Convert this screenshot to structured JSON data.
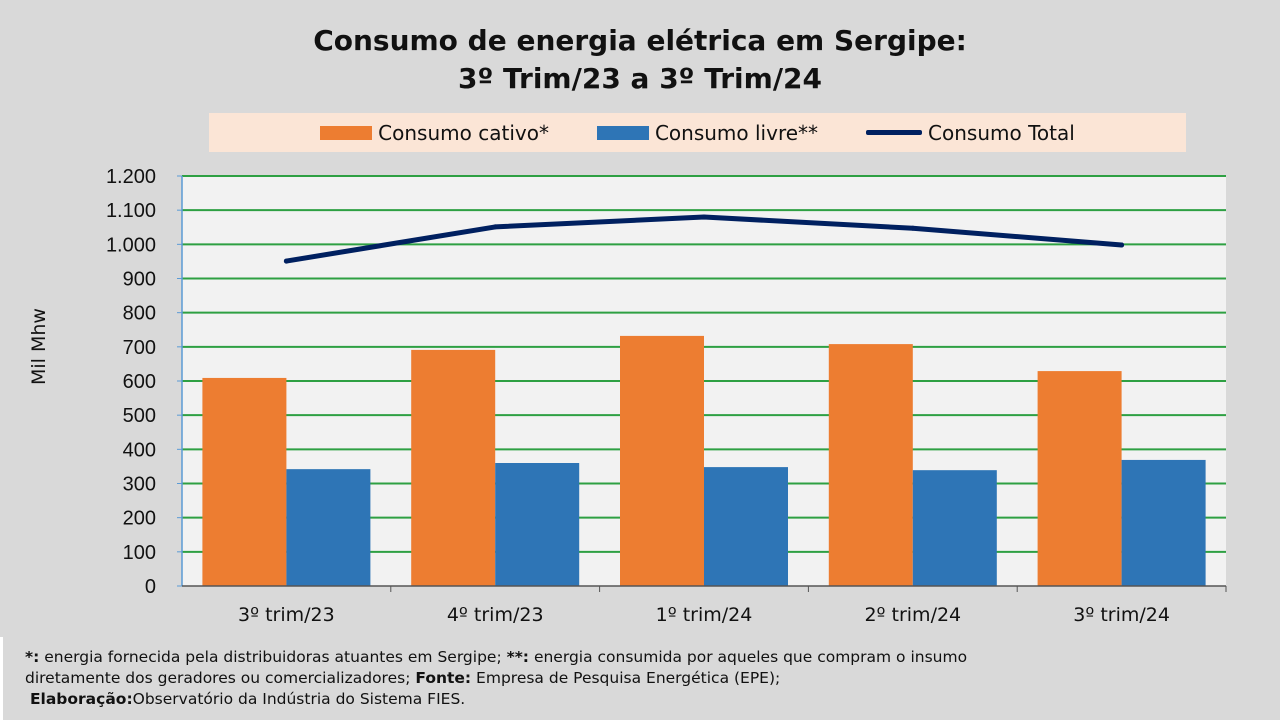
{
  "chart_data": {
    "type": "bar",
    "title_line1": "Consumo de energia elétrica em Sergipe:",
    "title_line2": "3º Trim/23 a 3º Trim/24",
    "ylabel": "Mil Mhw",
    "categories": [
      "3º trim/23",
      "4º trim/23",
      "1º trim/24",
      "2º trim/24",
      "3º trim/24"
    ],
    "ylim": [
      0,
      1200
    ],
    "yticks": [
      0,
      100,
      200,
      300,
      400,
      500,
      600,
      700,
      800,
      900,
      1000,
      1100,
      1200
    ],
    "ytick_labels": [
      "0",
      "100",
      "200",
      "300",
      "400",
      "500",
      "600",
      "700",
      "800",
      "900",
      "1.000",
      "1.100",
      "1.200"
    ],
    "grid": true,
    "legend_position": "top",
    "series": [
      {
        "name": "Consumo cativo*",
        "type": "bar",
        "color": "#ed7d31",
        "values": [
          609,
          691,
          732,
          708,
          629
        ]
      },
      {
        "name": "Consumo livre**",
        "type": "bar",
        "color": "#2e75b6",
        "values": [
          342,
          360,
          348,
          339,
          369
        ]
      },
      {
        "name": "Consumo Total",
        "type": "line",
        "color": "#002060",
        "values": [
          951,
          1051,
          1080,
          1047,
          998
        ]
      }
    ]
  },
  "footer": {
    "l1a": "*:",
    "l1b": " energia fornecida pela distribuidoras atuantes em Sergipe; ",
    "l1c": "**:",
    "l1d": " energia consumida por aqueles que compram o insumo",
    "l2a": "diretamente dos geradores ou comercializadores; ",
    "l2b": "Fonte:",
    "l2c": " Empresa de Pesquisa Energética (EPE);",
    "l3a": "Elaboração:",
    "l3b": "Observatório da Indústria do Sistema FIES."
  }
}
